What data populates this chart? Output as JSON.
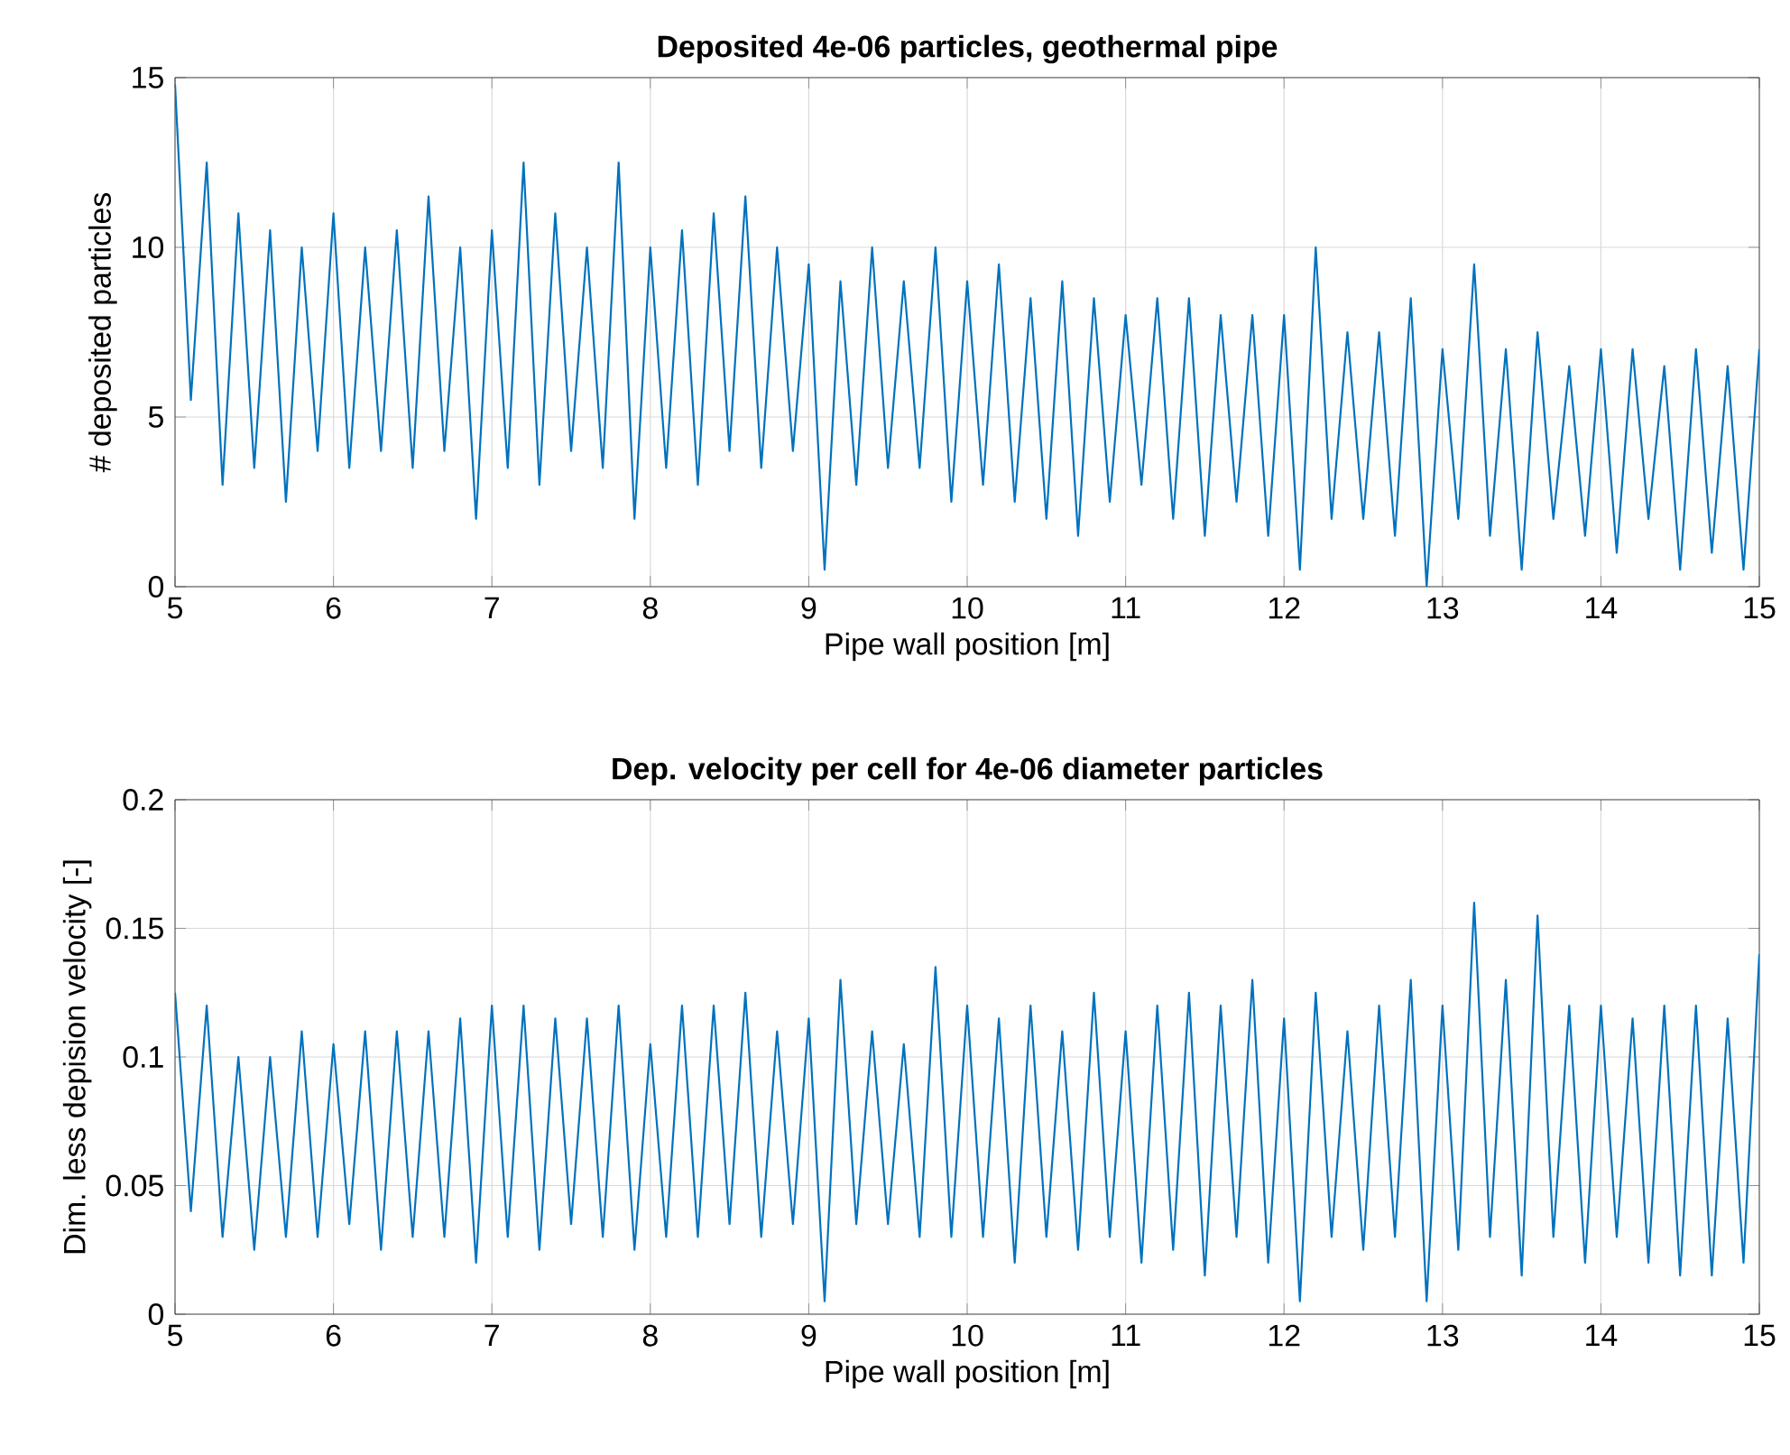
{
  "chart_data": [
    {
      "type": "line",
      "title": "Deposited 4e-06 particles, geothermal pipe",
      "xlabel": "Pipe wall position [m]",
      "ylabel": "# deposited particles",
      "color": "#0072bd",
      "grid": true,
      "xlim": [
        5,
        15
      ],
      "ylim": [
        0,
        15
      ],
      "xticks": [
        5,
        6,
        7,
        8,
        9,
        10,
        11,
        12,
        13,
        14,
        15
      ],
      "yticks": [
        0,
        5,
        10,
        15
      ],
      "x": [
        5.0,
        5.1,
        5.2,
        5.3,
        5.4,
        5.5,
        5.6,
        5.7,
        5.8,
        5.9,
        6.0,
        6.1,
        6.2,
        6.3,
        6.4,
        6.5,
        6.6,
        6.7,
        6.8,
        6.9,
        7.0,
        7.1,
        7.2,
        7.3,
        7.4,
        7.5,
        7.6,
        7.7,
        7.8,
        7.9,
        8.0,
        8.1,
        8.2,
        8.3,
        8.4,
        8.5,
        8.6,
        8.7,
        8.8,
        8.9,
        9.0,
        9.1,
        9.2,
        9.3,
        9.4,
        9.5,
        9.6,
        9.7,
        9.8,
        9.9,
        10.0,
        10.1,
        10.2,
        10.3,
        10.4,
        10.5,
        10.6,
        10.7,
        10.8,
        10.9,
        11.0,
        11.1,
        11.2,
        11.3,
        11.4,
        11.5,
        11.6,
        11.7,
        11.8,
        11.9,
        12.0,
        12.1,
        12.2,
        12.3,
        12.4,
        12.5,
        12.6,
        12.7,
        12.8,
        12.9,
        13.0,
        13.1,
        13.2,
        13.3,
        13.4,
        13.5,
        13.6,
        13.7,
        13.8,
        13.9,
        14.0,
        14.1,
        14.2,
        14.3,
        14.4,
        14.5,
        14.6,
        14.7,
        14.8,
        14.9,
        15.0
      ],
      "values": [
        14.8,
        5.5,
        12.5,
        3,
        11,
        3.5,
        10.5,
        2.5,
        10,
        4,
        11,
        3.5,
        10,
        4,
        10.5,
        3.5,
        11.5,
        4,
        10,
        2,
        10.5,
        3.5,
        12.5,
        3,
        11,
        4,
        10,
        3.5,
        12.5,
        2,
        10,
        3.5,
        10.5,
        3,
        11,
        4,
        11.5,
        3.5,
        10,
        4,
        9.5,
        0.5,
        9,
        3,
        10,
        3.5,
        9,
        3.5,
        10,
        2.5,
        9,
        3,
        9.5,
        2.5,
        8.5,
        2,
        9,
        1.5,
        8.5,
        2.5,
        8,
        3,
        8.5,
        2,
        8.5,
        1.5,
        8,
        2.5,
        8,
        1.5,
        8,
        0.5,
        10,
        2,
        7.5,
        2,
        7.5,
        1.5,
        8.5,
        0,
        7,
        2,
        9.5,
        1.5,
        7,
        0.5,
        7.5,
        2,
        6.5,
        1.5,
        7,
        1,
        7,
        2,
        6.5,
        0.5,
        7,
        1,
        6.5,
        0.5,
        7
      ]
    },
    {
      "type": "line",
      "title": "Dep. velocity per cell for 4e-06 diameter particles",
      "xlabel": "Pipe wall position [m]",
      "ylabel": "Dim. less depision velocity [-]",
      "color": "#0072bd",
      "grid": true,
      "xlim": [
        5,
        15
      ],
      "ylim": [
        0,
        0.2
      ],
      "xticks": [
        5,
        6,
        7,
        8,
        9,
        10,
        11,
        12,
        13,
        14,
        15
      ],
      "yticks": [
        0,
        0.05,
        0.1,
        0.15,
        0.2
      ],
      "x": [
        5.0,
        5.1,
        5.2,
        5.3,
        5.4,
        5.5,
        5.6,
        5.7,
        5.8,
        5.9,
        6.0,
        6.1,
        6.2,
        6.3,
        6.4,
        6.5,
        6.6,
        6.7,
        6.8,
        6.9,
        7.0,
        7.1,
        7.2,
        7.3,
        7.4,
        7.5,
        7.6,
        7.7,
        7.8,
        7.9,
        8.0,
        8.1,
        8.2,
        8.3,
        8.4,
        8.5,
        8.6,
        8.7,
        8.8,
        8.9,
        9.0,
        9.1,
        9.2,
        9.3,
        9.4,
        9.5,
        9.6,
        9.7,
        9.8,
        9.9,
        10.0,
        10.1,
        10.2,
        10.3,
        10.4,
        10.5,
        10.6,
        10.7,
        10.8,
        10.9,
        11.0,
        11.1,
        11.2,
        11.3,
        11.4,
        11.5,
        11.6,
        11.7,
        11.8,
        11.9,
        12.0,
        12.1,
        12.2,
        12.3,
        12.4,
        12.5,
        12.6,
        12.7,
        12.8,
        12.9,
        13.0,
        13.1,
        13.2,
        13.3,
        13.4,
        13.5,
        13.6,
        13.7,
        13.8,
        13.9,
        14.0,
        14.1,
        14.2,
        14.3,
        14.4,
        14.5,
        14.6,
        14.7,
        14.8,
        14.9,
        15.0
      ],
      "values": [
        0.125,
        0.04,
        0.12,
        0.03,
        0.1,
        0.025,
        0.1,
        0.03,
        0.11,
        0.03,
        0.105,
        0.035,
        0.11,
        0.025,
        0.11,
        0.03,
        0.11,
        0.03,
        0.115,
        0.02,
        0.12,
        0.03,
        0.12,
        0.025,
        0.115,
        0.035,
        0.115,
        0.03,
        0.12,
        0.025,
        0.105,
        0.03,
        0.12,
        0.03,
        0.12,
        0.035,
        0.125,
        0.03,
        0.11,
        0.035,
        0.115,
        0.005,
        0.13,
        0.035,
        0.11,
        0.035,
        0.105,
        0.03,
        0.135,
        0.03,
        0.12,
        0.03,
        0.115,
        0.02,
        0.12,
        0.03,
        0.11,
        0.025,
        0.125,
        0.03,
        0.11,
        0.02,
        0.12,
        0.025,
        0.125,
        0.015,
        0.12,
        0.03,
        0.13,
        0.02,
        0.115,
        0.005,
        0.125,
        0.03,
        0.11,
        0.025,
        0.12,
        0.03,
        0.13,
        0.005,
        0.12,
        0.025,
        0.16,
        0.03,
        0.13,
        0.015,
        0.155,
        0.03,
        0.12,
        0.02,
        0.12,
        0.03,
        0.115,
        0.02,
        0.12,
        0.015,
        0.12,
        0.015,
        0.115,
        0.02,
        0.14
      ]
    }
  ]
}
